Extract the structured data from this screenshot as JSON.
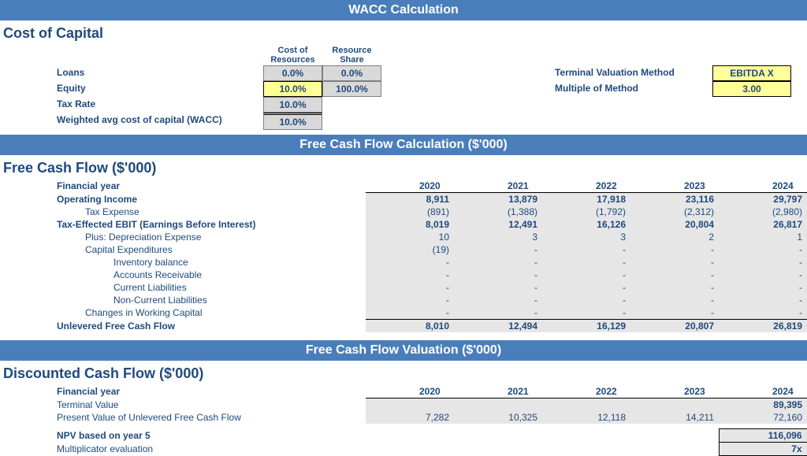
{
  "colors": {
    "banner_bg": "#4a7ebb",
    "text_blue": "#1f497d",
    "grey_cell": "#d9d9d9",
    "yellow_cell": "#ffff99",
    "shade": "#e6e6e6"
  },
  "banners": {
    "wacc": "WACC Calculation",
    "fcf": "Free Cash Flow Calculation ($'000)",
    "val": "Free Cash Flow Valuation ($'000)"
  },
  "wacc": {
    "title": "Cost of Capital",
    "headers": {
      "cost": "Cost of Resources",
      "share": "Resource Share"
    },
    "rows": {
      "loans": {
        "label": "Loans",
        "cost": "0.0%",
        "share": "0.0%"
      },
      "equity": {
        "label": "Equity",
        "cost": "10.0%",
        "share": "100.0%"
      },
      "tax": {
        "label": "Tax Rate",
        "cost": "10.0%"
      },
      "wacc": {
        "label": "Weighted avg cost of capital (WACC)",
        "cost": "10.0%"
      }
    },
    "terminal": {
      "method_label": "Terminal Valuation Method",
      "method_value": "EBITDA X",
      "multiple_label": "Multiple of Method",
      "multiple_value": "3.00"
    }
  },
  "fcf": {
    "title": "Free Cash Flow ($'000)",
    "fy_label": "Financial year",
    "years": [
      "2020",
      "2021",
      "2022",
      "2023",
      "2024"
    ],
    "rows": [
      {
        "key": "op",
        "label": "Operating Income",
        "bold": true,
        "indent": 0,
        "vals": [
          "8,911",
          "13,879",
          "17,918",
          "23,116",
          "29,797"
        ]
      },
      {
        "key": "tax",
        "label": "Tax Expense",
        "bold": false,
        "indent": 1,
        "vals": [
          "(891)",
          "(1,388)",
          "(1,792)",
          "(2,312)",
          "(2,980)"
        ]
      },
      {
        "key": "ebit",
        "label": "Tax-Effected EBIT (Earnings Before Interest)",
        "bold": true,
        "indent": 0,
        "vals": [
          "8,019",
          "12,491",
          "16,126",
          "20,804",
          "26,817"
        ]
      },
      {
        "key": "dep",
        "label": "Plus: Depreciation Expense",
        "bold": false,
        "indent": 1,
        "vals": [
          "10",
          "3",
          "3",
          "2",
          "1"
        ]
      },
      {
        "key": "capx",
        "label": "Capital Expenditures",
        "bold": false,
        "indent": 1,
        "vals": [
          "(19)",
          "-",
          "-",
          "-",
          "-"
        ]
      },
      {
        "key": "inv",
        "label": "Inventory balance",
        "bold": false,
        "indent": 2,
        "vals": [
          "-",
          "-",
          "-",
          "-",
          "-"
        ]
      },
      {
        "key": "ar",
        "label": "Accounts Receivable",
        "bold": false,
        "indent": 2,
        "vals": [
          "-",
          "-",
          "-",
          "-",
          "-"
        ]
      },
      {
        "key": "cl",
        "label": "Current Liabilities",
        "bold": false,
        "indent": 2,
        "vals": [
          "-",
          "-",
          "-",
          "-",
          "-"
        ]
      },
      {
        "key": "ncl",
        "label": "Non-Current Liabilities",
        "bold": false,
        "indent": 2,
        "vals": [
          "-",
          "-",
          "-",
          "-",
          "-"
        ]
      },
      {
        "key": "wc",
        "label": "Changes in Working Capital",
        "bold": false,
        "indent": 1,
        "vals": [
          "-",
          "-",
          "-",
          "-",
          "-"
        ]
      }
    ],
    "total": {
      "label": "Unlevered Free Cash Flow",
      "vals": [
        "8,010",
        "12,494",
        "16,129",
        "20,807",
        "26,819"
      ]
    }
  },
  "val": {
    "title": "Discounted Cash Flow ($'000)",
    "fy_label": "Financial year",
    "years": [
      "2020",
      "2021",
      "2022",
      "2023",
      "2024"
    ],
    "terminal": {
      "label": "Terminal Value",
      "vals": [
        "",
        "",
        "",
        "",
        "89,395"
      ]
    },
    "pv": {
      "label": "Present Value of Unlevered Free Cash Flow",
      "vals": [
        "7,282",
        "10,325",
        "12,118",
        "14,211",
        "72,160"
      ]
    },
    "npv": {
      "label": "NPV based on year 5",
      "value": "116,096"
    },
    "mult": {
      "label": "Multiplicator evaluation",
      "value": "7x"
    }
  }
}
